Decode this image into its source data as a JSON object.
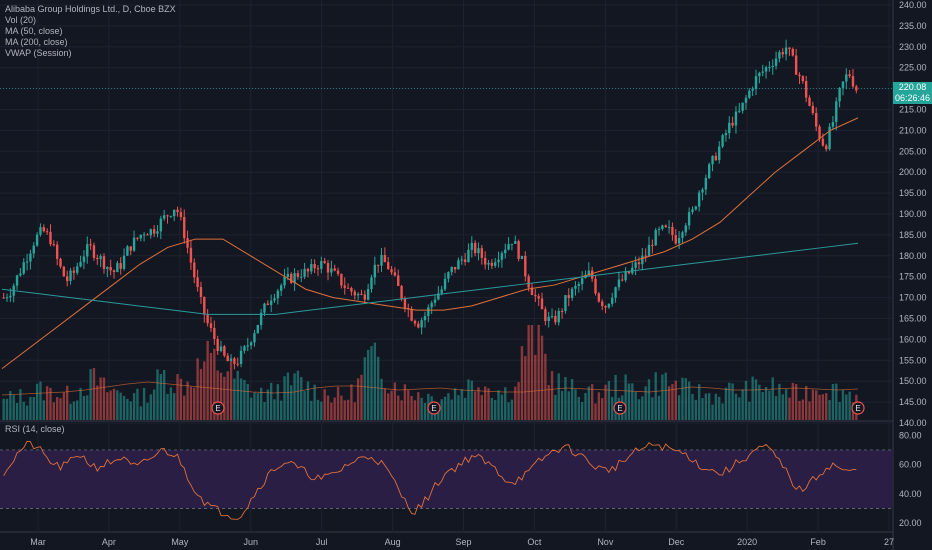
{
  "legend": {
    "title": "Alibaba Group Holdings Ltd., D, Cboe BZX",
    "vol": "Vol (20)",
    "ma50": "MA (50, close)",
    "ma200": "MA (200, close)",
    "vwap": "VWAP (Session)",
    "rsi": "RSI (14, close)"
  },
  "last_price": {
    "value": "220.08",
    "countdown": "06:26:46"
  },
  "colors": {
    "background": "#131722",
    "up": "#26a69a",
    "down": "#ef5350",
    "ma50": "#e0703a",
    "ma200": "#2b9a9a",
    "rsi_line": "#e0703a",
    "rsi_band": "#2a1e44",
    "grid": "#1e2230",
    "text": "#b2b5be",
    "earnings": "#ef5350"
  },
  "chart_data": {
    "type": "candlestick",
    "title": "Alibaba Group Holdings Ltd., D, Cboe BZX",
    "y_ticks": [
      "240.00",
      "235.00",
      "230.00",
      "225.00",
      "220.00",
      "215.00",
      "210.00",
      "205.00",
      "200.00",
      "195.00",
      "190.00",
      "185.00",
      "180.00",
      "175.00",
      "170.00",
      "165.00",
      "160.00",
      "155.00",
      "150.00",
      "145.00",
      "140.00"
    ],
    "ylim": [
      140,
      240
    ],
    "x_ticks": [
      "Mar",
      "Apr",
      "May",
      "Jun",
      "Jul",
      "Aug",
      "Sep",
      "Oct",
      "Nov",
      "Dec",
      "2020",
      "Feb",
      "27"
    ],
    "earnings_markers": [
      "E",
      "E",
      "E",
      "E"
    ],
    "price_path": [
      170,
      172,
      176,
      180,
      184,
      186,
      184,
      178,
      174,
      176,
      180,
      182,
      180,
      178,
      176,
      178,
      182,
      184,
      186,
      186,
      188,
      190,
      192,
      186,
      178,
      170,
      164,
      160,
      156,
      154,
      155,
      158,
      162,
      166,
      170,
      172,
      174,
      175,
      176,
      176,
      178,
      178,
      176,
      174,
      172,
      171,
      170,
      176,
      179,
      178,
      174,
      170,
      166,
      164,
      166,
      170,
      172,
      176,
      178,
      180,
      182,
      180,
      178,
      180,
      182,
      184,
      180,
      174,
      170,
      166,
      164,
      166,
      170,
      172,
      174,
      176,
      170,
      168,
      172,
      174,
      176,
      178,
      180,
      184,
      186,
      186,
      184,
      188,
      190,
      196,
      200,
      204,
      208,
      212,
      214,
      218,
      222,
      224,
      226,
      228,
      230,
      226,
      222,
      216,
      210,
      206,
      212,
      220,
      224,
      220
    ],
    "ma50": [
      153,
      158,
      163,
      168,
      173,
      178,
      182,
      184,
      184,
      180,
      176,
      172,
      170,
      169,
      168,
      167,
      167,
      168,
      170,
      172,
      173,
      175,
      177,
      179,
      181,
      184,
      188,
      194,
      200,
      205,
      210,
      213
    ],
    "ma200": [
      172,
      171,
      170,
      169,
      168,
      167,
      166,
      166,
      166,
      167,
      168,
      169,
      170,
      171,
      172,
      173,
      174,
      175,
      176,
      177,
      178,
      179,
      180,
      181,
      182,
      183
    ],
    "volume_path": [
      18,
      25,
      22,
      30,
      28,
      26,
      24,
      35,
      40,
      30,
      28,
      25,
      22,
      30,
      45,
      40,
      35,
      50,
      60,
      55,
      45,
      35,
      28,
      25,
      30,
      35,
      40,
      30,
      28,
      25,
      22,
      30,
      60,
      55,
      40,
      30,
      28,
      25,
      22,
      25,
      30,
      35,
      40,
      30,
      28,
      30,
      80,
      90,
      45,
      35,
      30,
      28,
      25,
      30,
      35,
      32,
      30,
      35,
      40,
      35,
      30,
      28,
      25,
      24,
      30,
      28,
      32,
      35,
      30,
      28,
      25,
      30,
      35,
      30,
      28,
      25
    ],
    "vol_ma": [
      25,
      26,
      27,
      28,
      30,
      33,
      36,
      38,
      36,
      34,
      32,
      30,
      28,
      27,
      28,
      32,
      34,
      34,
      32,
      30,
      31,
      32,
      30,
      29,
      28,
      28,
      30,
      32,
      31,
      30,
      29,
      28,
      30,
      33,
      32,
      30,
      30,
      31,
      32,
      31,
      30,
      31
    ],
    "rsi": {
      "ylim": [
        20,
        85
      ],
      "ticks": [
        "80.00",
        "60.00",
        "40.00",
        "20.00"
      ],
      "band": [
        30,
        70
      ],
      "values": [
        55,
        62,
        70,
        74,
        72,
        65,
        60,
        58,
        62,
        68,
        62,
        58,
        60,
        62,
        65,
        60,
        58,
        62,
        66,
        70,
        68,
        64,
        52,
        42,
        35,
        30,
        28,
        26,
        24,
        30,
        40,
        48,
        55,
        60,
        62,
        58,
        55,
        52,
        50,
        52,
        55,
        60,
        62,
        65,
        66,
        62,
        55,
        45,
        35,
        28,
        32,
        40,
        48,
        55,
        58,
        62,
        66,
        64,
        60,
        56,
        50,
        48,
        52,
        55,
        62,
        66,
        70,
        72,
        70,
        66,
        62,
        58,
        56,
        58,
        62,
        66,
        70,
        72,
        74,
        72,
        70,
        68,
        66,
        60,
        58,
        55,
        54,
        58,
        62,
        66,
        70,
        72,
        68,
        60,
        52,
        42,
        45,
        50,
        56,
        60,
        58,
        54,
        56
      ]
    }
  }
}
